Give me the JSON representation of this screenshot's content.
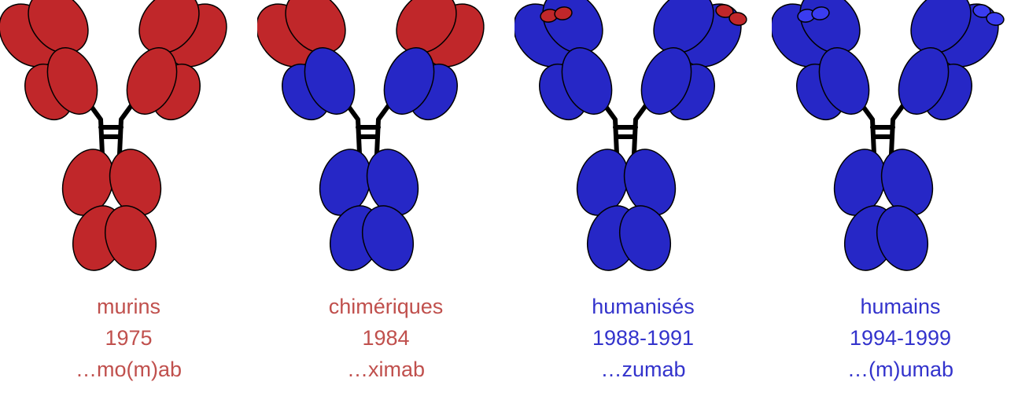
{
  "colors": {
    "murine": "#c0272a",
    "human": "#2627c6",
    "human_cdr": "#3a3cf0",
    "label_red": "#c0504d",
    "label_blue": "#3333cc",
    "hinge": "#000000"
  },
  "antibodies": [
    {
      "name": "murins",
      "year": "1975",
      "suffix": "…mo(m)ab",
      "label_color": "label_red",
      "variable_color": "murine",
      "constant_color": "murine",
      "cdr_color": "murine"
    },
    {
      "name": "chimériques",
      "year": "1984",
      "suffix": "…ximab",
      "label_color": "label_red",
      "variable_color": "murine",
      "constant_color": "human",
      "cdr_color": "murine"
    },
    {
      "name": "humanisés",
      "year": "1988-1991",
      "suffix": "…zumab",
      "label_color": "label_blue",
      "variable_color": "human",
      "constant_color": "human",
      "cdr_color": "murine"
    },
    {
      "name": "humains",
      "year": "1994-1999",
      "suffix": "…(m)umab",
      "label_color": "label_blue",
      "variable_color": "human",
      "constant_color": "human",
      "cdr_color": "human_cdr"
    }
  ]
}
